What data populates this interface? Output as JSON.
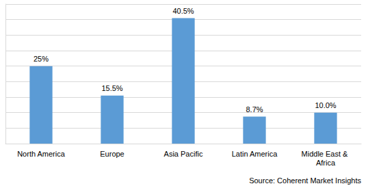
{
  "chart_data": {
    "type": "bar",
    "categories": [
      "North America",
      "Europe",
      "Asia Pacific",
      "Latin America",
      "Middle East & Africa"
    ],
    "values": [
      25,
      15.5,
      40.5,
      8.7,
      10.0
    ],
    "value_labels": [
      "25%",
      "15.5%",
      "40.5%",
      "8.7%",
      "10.0%"
    ],
    "data_labels": true,
    "color": "#5b9bd5",
    "ylim": [
      0,
      45
    ],
    "yticks": [
      0,
      5,
      10,
      15,
      20,
      25,
      30,
      35,
      40,
      45
    ],
    "grid": true,
    "tick_labels": "x",
    "annotations": [
      "Source: Coherent Market Insights"
    ]
  }
}
